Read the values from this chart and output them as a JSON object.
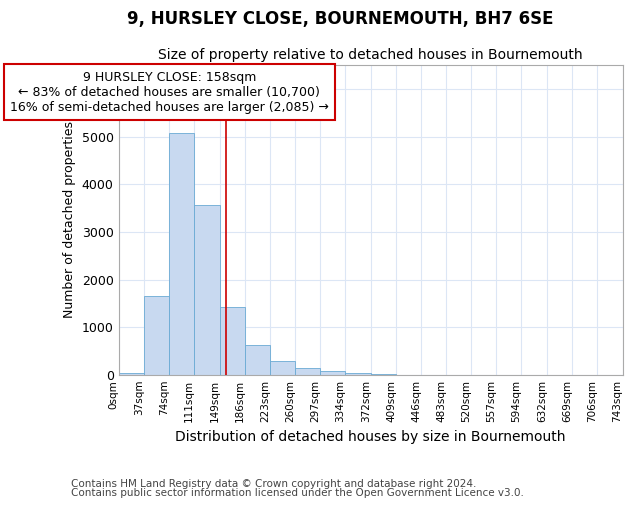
{
  "title": "9, HURSLEY CLOSE, BOURNEMOUTH, BH7 6SE",
  "subtitle": "Size of property relative to detached houses in Bournemouth",
  "xlabel": "Distribution of detached houses by size in Bournemouth",
  "ylabel": "Number of detached properties",
  "footer_line1": "Contains HM Land Registry data © Crown copyright and database right 2024.",
  "footer_line2": "Contains public sector information licensed under the Open Government Licence v3.0.",
  "bar_edges": [
    0,
    37,
    74,
    111,
    149,
    186,
    223,
    260,
    297,
    334,
    372,
    409,
    446,
    483,
    520,
    557,
    594,
    632,
    669,
    706,
    743
  ],
  "bar_heights": [
    50,
    1650,
    5075,
    3575,
    1425,
    625,
    300,
    155,
    90,
    50,
    20,
    5,
    3,
    2,
    1,
    1,
    0,
    0,
    0,
    0
  ],
  "bar_color": "#c8d9f0",
  "bar_edge_color": "#6aaad4",
  "property_size": 158,
  "vline_color": "#cc0000",
  "annotation_text_line1": "9 HURSLEY CLOSE: 158sqm",
  "annotation_text_line2": "← 83% of detached houses are smaller (10,700)",
  "annotation_text_line3": "16% of semi-detached houses are larger (2,085) →",
  "annotation_box_color": "#cc0000",
  "ylim": [
    0,
    6500
  ],
  "xlim": [
    0,
    743
  ],
  "background_color": "#ffffff",
  "fig_background_color": "#ffffff",
  "grid_color": "#dce6f5",
  "tick_label_rotation": 90,
  "title_fontsize": 12,
  "subtitle_fontsize": 10,
  "xlabel_fontsize": 10,
  "ylabel_fontsize": 9,
  "annotation_fontsize": 9,
  "footer_fontsize": 7.5
}
